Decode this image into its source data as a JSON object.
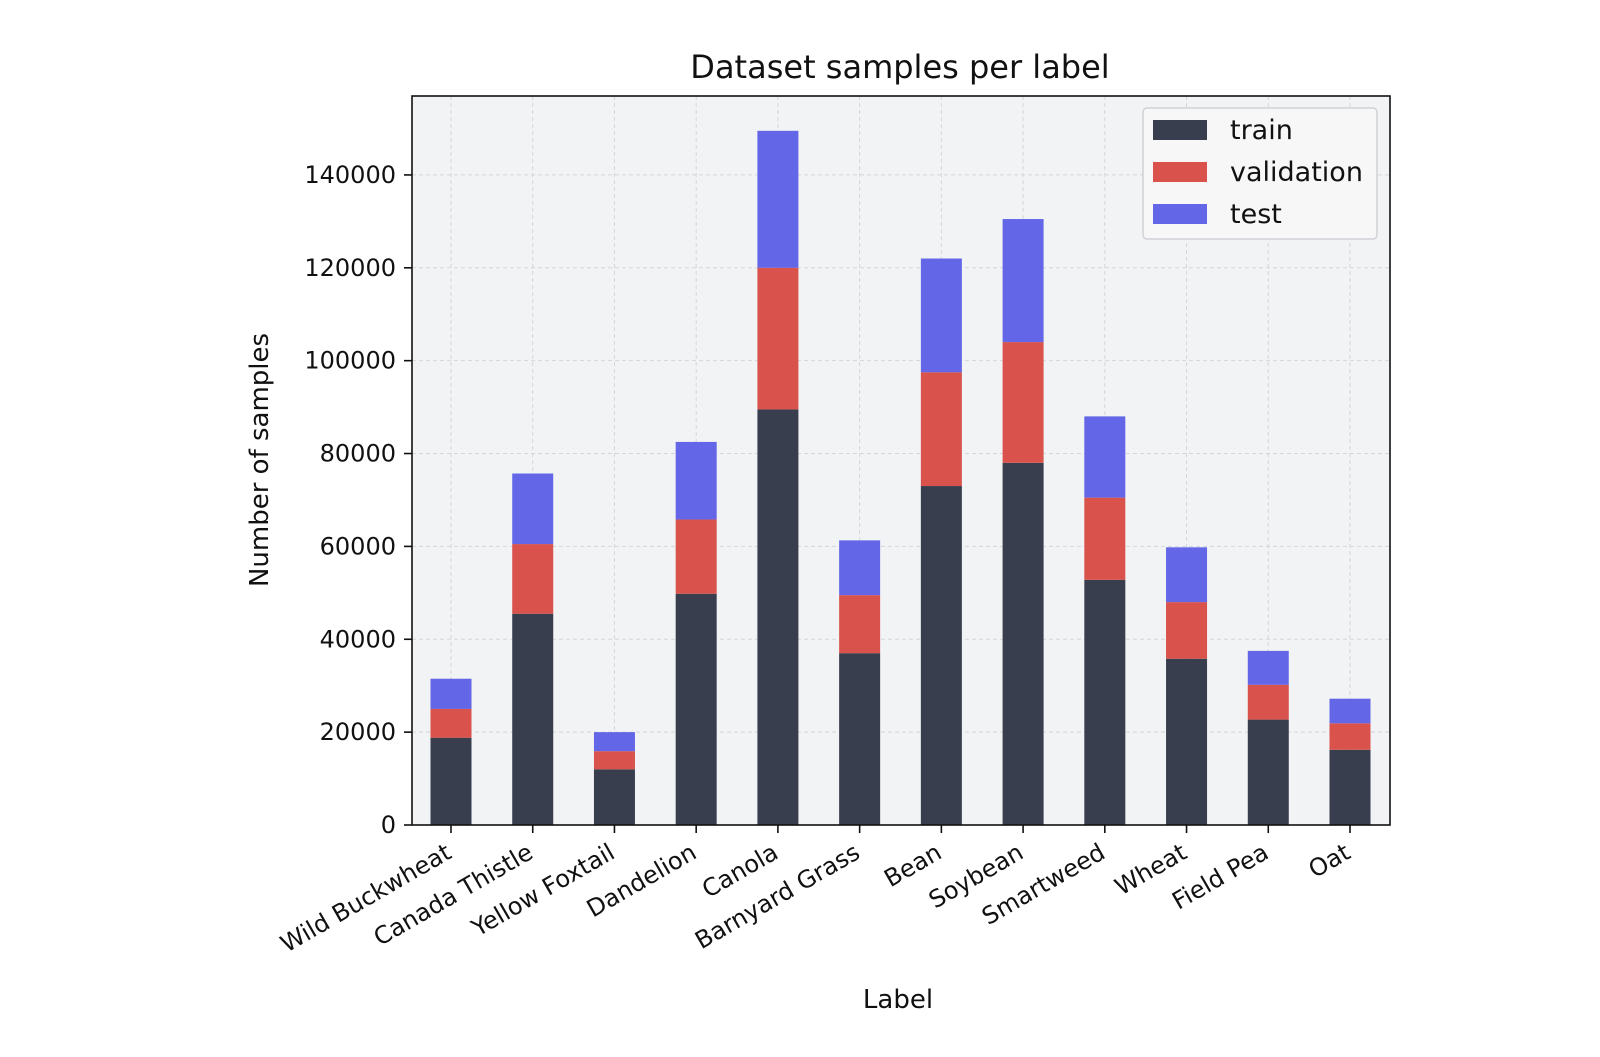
{
  "chart_data": {
    "type": "bar",
    "stacked": true,
    "title": "Dataset samples per label",
    "xlabel": "Label",
    "ylabel": "Number of samples",
    "ylim": [
      0,
      157000
    ],
    "yticks": [
      0,
      20000,
      40000,
      60000,
      80000,
      100000,
      120000,
      140000
    ],
    "ytick_labels": [
      "0",
      "20000",
      "40000",
      "60000",
      "80000",
      "100000",
      "120000",
      "140000"
    ],
    "grid": true,
    "legend_position": "top-right",
    "categories": [
      "Wild Buckwheat",
      "Canada Thistle",
      "Yellow Foxtail",
      "Dandelion",
      "Canola",
      "Barnyard Grass",
      "Bean",
      "Soybean",
      "Smartweed",
      "Wheat",
      "Field Pea",
      "Oat"
    ],
    "series": [
      {
        "name": "train",
        "color": "#383e4e",
        "values": [
          18800,
          45500,
          12000,
          49800,
          89500,
          37000,
          73000,
          78000,
          52800,
          35800,
          22700,
          16200
        ]
      },
      {
        "name": "validation",
        "color": "#d9524b",
        "values": [
          6200,
          15000,
          3900,
          16000,
          30500,
          12500,
          24500,
          26000,
          17700,
          12200,
          7500,
          5700
        ]
      },
      {
        "name": "test",
        "color": "#6366e6",
        "values": [
          6500,
          15200,
          4100,
          16700,
          29500,
          11800,
          24500,
          26500,
          17500,
          11800,
          7300,
          5300
        ]
      }
    ]
  }
}
